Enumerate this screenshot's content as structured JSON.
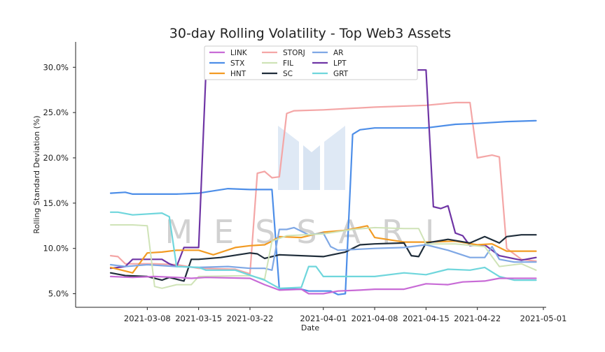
{
  "chart_data": {
    "type": "line",
    "title": "30-day Rolling Volatility - Top Web3 Assets",
    "xlabel": "Date",
    "ylabel": "Rolling Standard Deviation (%)",
    "x_range": [
      "2021-03-01",
      "2021-05-01"
    ],
    "ylim": [
      3.5,
      32.8
    ],
    "y_ticks": [
      {
        "value": 5,
        "label": "5.0%"
      },
      {
        "value": 10,
        "label": "10.0%"
      },
      {
        "value": 15,
        "label": "15.0%"
      },
      {
        "value": 20,
        "label": "20.0%"
      },
      {
        "value": 25,
        "label": "25.0%"
      },
      {
        "value": 30,
        "label": "30.0%"
      }
    ],
    "x_ticks": [
      {
        "value": "2021-03-08",
        "label": "2021-03-08"
      },
      {
        "value": "2021-03-15",
        "label": "2021-03-15"
      },
      {
        "value": "2021-03-22",
        "label": "2021-03-22"
      },
      {
        "value": "2021-04-01",
        "label": "2021-04-01"
      },
      {
        "value": "2021-04-08",
        "label": "2021-04-08"
      },
      {
        "value": "2021-04-15",
        "label": "2021-04-15"
      },
      {
        "value": "2021-04-22",
        "label": "2021-04-22"
      },
      {
        "value": "2021-05-01",
        "label": "2021-05-01"
      }
    ],
    "grid": false,
    "legend_position": "top-center",
    "watermark": "MESSARI",
    "series": [
      {
        "name": "STORJ",
        "color": "#f4a6a6",
        "points": [
          [
            "2021-03-03",
            9.2
          ],
          [
            "2021-03-04",
            9.1
          ],
          [
            "2021-03-05",
            8.3
          ],
          [
            "2021-03-09",
            8.3
          ],
          [
            "2021-03-12",
            8.2
          ],
          [
            "2021-03-15",
            7.8
          ],
          [
            "2021-03-20",
            7.7
          ],
          [
            "2021-03-22",
            7.2
          ],
          [
            "2021-03-23",
            18.3
          ],
          [
            "2021-03-24",
            18.5
          ],
          [
            "2021-03-25",
            17.8
          ],
          [
            "2021-03-26",
            17.9
          ],
          [
            "2021-03-27",
            24.9
          ],
          [
            "2021-03-28",
            25.2
          ],
          [
            "2021-04-01",
            25.3
          ],
          [
            "2021-04-08",
            25.6
          ],
          [
            "2021-04-15",
            25.8
          ],
          [
            "2021-04-19",
            26.1
          ],
          [
            "2021-04-21",
            26.1
          ],
          [
            "2021-04-22",
            20.0
          ],
          [
            "2021-04-24",
            20.3
          ],
          [
            "2021-04-25",
            20.1
          ],
          [
            "2021-04-26",
            10.0
          ],
          [
            "2021-04-28",
            8.8
          ],
          [
            "2021-04-30",
            8.6
          ]
        ]
      },
      {
        "name": "STX",
        "color": "#4d8ee8",
        "points": [
          [
            "2021-03-03",
            16.1
          ],
          [
            "2021-03-05",
            16.2
          ],
          [
            "2021-03-06",
            16.0
          ],
          [
            "2021-03-12",
            16.0
          ],
          [
            "2021-03-15",
            16.1
          ],
          [
            "2021-03-19",
            16.6
          ],
          [
            "2021-03-22",
            16.5
          ],
          [
            "2021-03-25",
            16.5
          ],
          [
            "2021-03-26",
            5.5
          ],
          [
            "2021-03-29",
            5.5
          ],
          [
            "2021-03-30",
            5.3
          ],
          [
            "2021-04-02",
            5.3
          ],
          [
            "2021-04-03",
            4.9
          ],
          [
            "2021-04-04",
            5.0
          ],
          [
            "2021-04-05",
            22.6
          ],
          [
            "2021-04-06",
            23.1
          ],
          [
            "2021-04-08",
            23.3
          ],
          [
            "2021-04-15",
            23.3
          ],
          [
            "2021-04-19",
            23.7
          ],
          [
            "2021-04-22",
            23.8
          ],
          [
            "2021-04-26",
            24.0
          ],
          [
            "2021-04-30",
            24.1
          ]
        ]
      },
      {
        "name": "LPT",
        "color": "#6f35a5",
        "points": [
          [
            "2021-03-03",
            7.8
          ],
          [
            "2021-03-05",
            8.0
          ],
          [
            "2021-03-06",
            8.8
          ],
          [
            "2021-03-10",
            8.8
          ],
          [
            "2021-03-11",
            8.3
          ],
          [
            "2021-03-12",
            8.0
          ],
          [
            "2021-03-13",
            10.1
          ],
          [
            "2021-03-15",
            10.1
          ],
          [
            "2021-03-16",
            29.5
          ],
          [
            "2021-03-17",
            29.7
          ],
          [
            "2021-03-18",
            29.7
          ],
          [
            "2021-04-15",
            29.7
          ],
          [
            "2021-04-16",
            14.6
          ],
          [
            "2021-04-17",
            14.4
          ],
          [
            "2021-04-18",
            14.7
          ],
          [
            "2021-04-19",
            11.7
          ],
          [
            "2021-04-20",
            11.4
          ],
          [
            "2021-04-21",
            10.3
          ],
          [
            "2021-04-23",
            10.4
          ],
          [
            "2021-04-25",
            9.2
          ],
          [
            "2021-04-28",
            8.7
          ],
          [
            "2021-04-30",
            9.0
          ]
        ]
      },
      {
        "name": "HNT",
        "color": "#f29b23",
        "points": [
          [
            "2021-03-03",
            7.9
          ],
          [
            "2021-03-05",
            7.5
          ],
          [
            "2021-03-06",
            7.3
          ],
          [
            "2021-03-08",
            9.5
          ],
          [
            "2021-03-10",
            9.6
          ],
          [
            "2021-03-12",
            9.8
          ],
          [
            "2021-03-15",
            9.8
          ],
          [
            "2021-03-17",
            9.3
          ],
          [
            "2021-03-20",
            10.1
          ],
          [
            "2021-03-22",
            10.3
          ],
          [
            "2021-03-24",
            10.4
          ],
          [
            "2021-03-25",
            10.8
          ],
          [
            "2021-03-26",
            11.3
          ],
          [
            "2021-03-29",
            11.2
          ],
          [
            "2021-04-01",
            11.8
          ],
          [
            "2021-04-04",
            12.0
          ],
          [
            "2021-04-07",
            12.5
          ],
          [
            "2021-04-08",
            11.2
          ],
          [
            "2021-04-12",
            10.7
          ],
          [
            "2021-04-15",
            10.7
          ],
          [
            "2021-04-19",
            10.8
          ],
          [
            "2021-04-22",
            10.4
          ],
          [
            "2021-04-24",
            10.5
          ],
          [
            "2021-04-26",
            9.7
          ],
          [
            "2021-04-28",
            9.7
          ],
          [
            "2021-04-30",
            9.7
          ]
        ]
      },
      {
        "name": "SC",
        "color": "#1f2d3a",
        "points": [
          [
            "2021-03-03",
            7.3
          ],
          [
            "2021-03-05",
            7.0
          ],
          [
            "2021-03-08",
            6.9
          ],
          [
            "2021-03-10",
            6.5
          ],
          [
            "2021-03-11",
            6.8
          ],
          [
            "2021-03-13",
            6.4
          ],
          [
            "2021-03-14",
            8.8
          ],
          [
            "2021-03-15",
            8.8
          ],
          [
            "2021-03-18",
            9.0
          ],
          [
            "2021-03-22",
            9.5
          ],
          [
            "2021-03-23",
            9.4
          ],
          [
            "2021-03-24",
            8.9
          ],
          [
            "2021-03-26",
            9.3
          ],
          [
            "2021-04-01",
            9.1
          ],
          [
            "2021-04-04",
            9.6
          ],
          [
            "2021-04-06",
            10.4
          ],
          [
            "2021-04-08",
            10.5
          ],
          [
            "2021-04-12",
            10.6
          ],
          [
            "2021-04-13",
            9.2
          ],
          [
            "2021-04-14",
            9.1
          ],
          [
            "2021-04-15",
            10.6
          ],
          [
            "2021-04-18",
            11.0
          ],
          [
            "2021-04-21",
            10.6
          ],
          [
            "2021-04-23",
            11.3
          ],
          [
            "2021-04-25",
            10.6
          ],
          [
            "2021-04-26",
            11.3
          ],
          [
            "2021-04-28",
            11.5
          ],
          [
            "2021-04-30",
            11.5
          ]
        ]
      },
      {
        "name": "AR",
        "color": "#7fa8e5",
        "points": [
          [
            "2021-03-03",
            8.2
          ],
          [
            "2021-03-05",
            8.0
          ],
          [
            "2021-03-08",
            8.2
          ],
          [
            "2021-03-12",
            8.0
          ],
          [
            "2021-03-15",
            7.9
          ],
          [
            "2021-03-19",
            8.0
          ],
          [
            "2021-03-22",
            7.8
          ],
          [
            "2021-03-24",
            7.8
          ],
          [
            "2021-03-25",
            7.6
          ],
          [
            "2021-03-26",
            12.1
          ],
          [
            "2021-03-27",
            12.1
          ],
          [
            "2021-03-28",
            12.3
          ],
          [
            "2021-03-30",
            11.5
          ],
          [
            "2021-04-01",
            11.7
          ],
          [
            "2021-04-02",
            10.2
          ],
          [
            "2021-04-03",
            9.8
          ],
          [
            "2021-04-08",
            10.0
          ],
          [
            "2021-04-12",
            10.1
          ],
          [
            "2021-04-15",
            10.4
          ],
          [
            "2021-04-18",
            9.8
          ],
          [
            "2021-04-21",
            9.0
          ],
          [
            "2021-04-23",
            9.0
          ],
          [
            "2021-04-24",
            10.2
          ],
          [
            "2021-04-25",
            8.8
          ],
          [
            "2021-04-27",
            8.5
          ],
          [
            "2021-04-30",
            8.5
          ]
        ]
      },
      {
        "name": "FIL",
        "color": "#cfe3b7",
        "points": [
          [
            "2021-03-03",
            12.6
          ],
          [
            "2021-03-06",
            12.6
          ],
          [
            "2021-03-08",
            12.5
          ],
          [
            "2021-03-09",
            5.8
          ],
          [
            "2021-03-10",
            5.6
          ],
          [
            "2021-03-12",
            6.0
          ],
          [
            "2021-03-14",
            6.0
          ],
          [
            "2021-03-15",
            6.9
          ],
          [
            "2021-03-22",
            7.0
          ],
          [
            "2021-03-24",
            6.6
          ],
          [
            "2021-03-25",
            10.8
          ],
          [
            "2021-03-27",
            11.4
          ],
          [
            "2021-04-01",
            11.6
          ],
          [
            "2021-04-05",
            12.1
          ],
          [
            "2021-04-08",
            12.3
          ],
          [
            "2021-04-12",
            12.2
          ],
          [
            "2021-04-14",
            12.2
          ],
          [
            "2021-04-15",
            10.5
          ],
          [
            "2021-04-19",
            10.5
          ],
          [
            "2021-04-23",
            10.2
          ],
          [
            "2021-04-25",
            8.0
          ],
          [
            "2021-04-28",
            8.3
          ],
          [
            "2021-04-30",
            7.6
          ]
        ]
      },
      {
        "name": "GRT",
        "color": "#6fd6dc",
        "points": [
          [
            "2021-03-03",
            14.0
          ],
          [
            "2021-03-04",
            14.0
          ],
          [
            "2021-03-06",
            13.7
          ],
          [
            "2021-03-10",
            13.9
          ],
          [
            "2021-03-11",
            13.5
          ],
          [
            "2021-03-12",
            8.0
          ],
          [
            "2021-03-15",
            7.9
          ],
          [
            "2021-03-16",
            7.6
          ],
          [
            "2021-03-20",
            7.6
          ],
          [
            "2021-03-24",
            6.5
          ],
          [
            "2021-03-26",
            5.6
          ],
          [
            "2021-03-29",
            5.7
          ],
          [
            "2021-03-30",
            8.0
          ],
          [
            "2021-03-31",
            8.0
          ],
          [
            "2021-04-01",
            6.9
          ],
          [
            "2021-04-03",
            6.9
          ],
          [
            "2021-04-08",
            6.9
          ],
          [
            "2021-04-12",
            7.3
          ],
          [
            "2021-04-15",
            7.1
          ],
          [
            "2021-04-18",
            7.7
          ],
          [
            "2021-04-21",
            7.6
          ],
          [
            "2021-04-23",
            7.9
          ],
          [
            "2021-04-25",
            6.9
          ],
          [
            "2021-04-27",
            6.5
          ],
          [
            "2021-04-30",
            6.5
          ]
        ]
      },
      {
        "name": "LINK",
        "color": "#c86bd6",
        "points": [
          [
            "2021-03-03",
            6.9
          ],
          [
            "2021-03-06",
            6.8
          ],
          [
            "2021-03-09",
            6.9
          ],
          [
            "2021-03-12",
            6.8
          ],
          [
            "2021-03-14",
            6.7
          ],
          [
            "2021-03-16",
            6.8
          ],
          [
            "2021-03-22",
            6.7
          ],
          [
            "2021-03-24",
            6.0
          ],
          [
            "2021-03-26",
            5.4
          ],
          [
            "2021-03-29",
            5.5
          ],
          [
            "2021-03-30",
            5.0
          ],
          [
            "2021-04-01",
            5.0
          ],
          [
            "2021-04-03",
            5.3
          ],
          [
            "2021-04-06",
            5.4
          ],
          [
            "2021-04-08",
            5.5
          ],
          [
            "2021-04-12",
            5.5
          ],
          [
            "2021-04-15",
            6.1
          ],
          [
            "2021-04-18",
            6.0
          ],
          [
            "2021-04-20",
            6.3
          ],
          [
            "2021-04-23",
            6.4
          ],
          [
            "2021-04-25",
            6.7
          ],
          [
            "2021-04-27",
            6.7
          ],
          [
            "2021-04-30",
            6.7
          ]
        ]
      }
    ],
    "legend": [
      {
        "name": "LINK",
        "color": "#c86bd6"
      },
      {
        "name": "STX",
        "color": "#4d8ee8"
      },
      {
        "name": "HNT",
        "color": "#f29b23"
      },
      {
        "name": "STORJ",
        "color": "#f4a6a6"
      },
      {
        "name": "FIL",
        "color": "#cfe3b7"
      },
      {
        "name": "SC",
        "color": "#1f2d3a"
      },
      {
        "name": "AR",
        "color": "#7fa8e5"
      },
      {
        "name": "LPT",
        "color": "#6f35a5"
      },
      {
        "name": "GRT",
        "color": "#6fd6dc"
      }
    ]
  }
}
